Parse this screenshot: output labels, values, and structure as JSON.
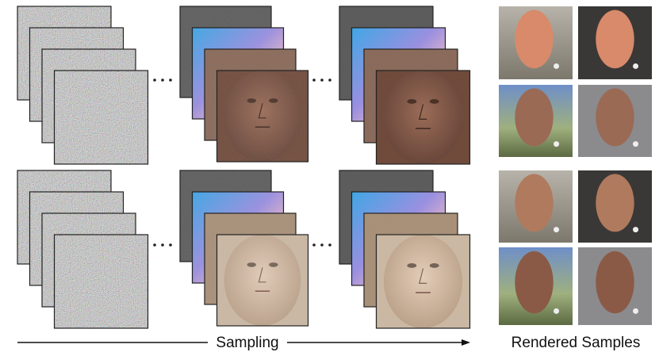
{
  "labels": {
    "sampling": "Sampling",
    "rendered": "Rendered Samples"
  }
}
